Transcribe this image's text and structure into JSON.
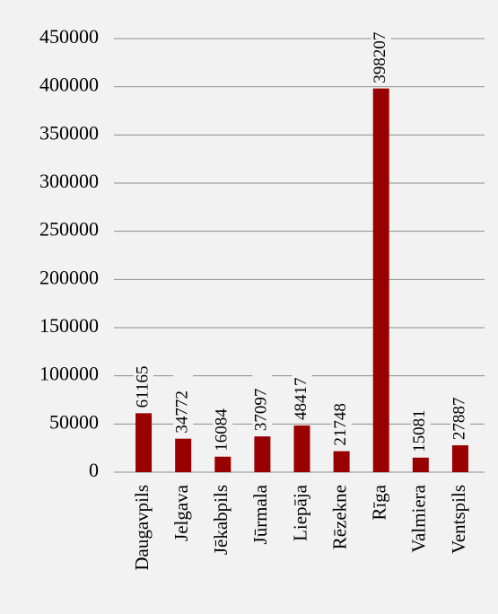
{
  "chart_data": {
    "type": "bar",
    "categories": [
      "Daugavpils",
      "Jelgava",
      "Jēkabpils",
      "Jūrmala",
      "Liepāja",
      "Rēzekne",
      "Rīga",
      "Valmiera",
      "Ventspils"
    ],
    "values": [
      61165,
      34772,
      16084,
      37097,
      48417,
      21748,
      398207,
      15081,
      27887
    ],
    "color": "#990000",
    "ylim": [
      0,
      450000
    ],
    "yticks": [
      0,
      50000,
      100000,
      150000,
      200000,
      250000,
      300000,
      350000,
      400000,
      450000
    ],
    "grid": true
  }
}
